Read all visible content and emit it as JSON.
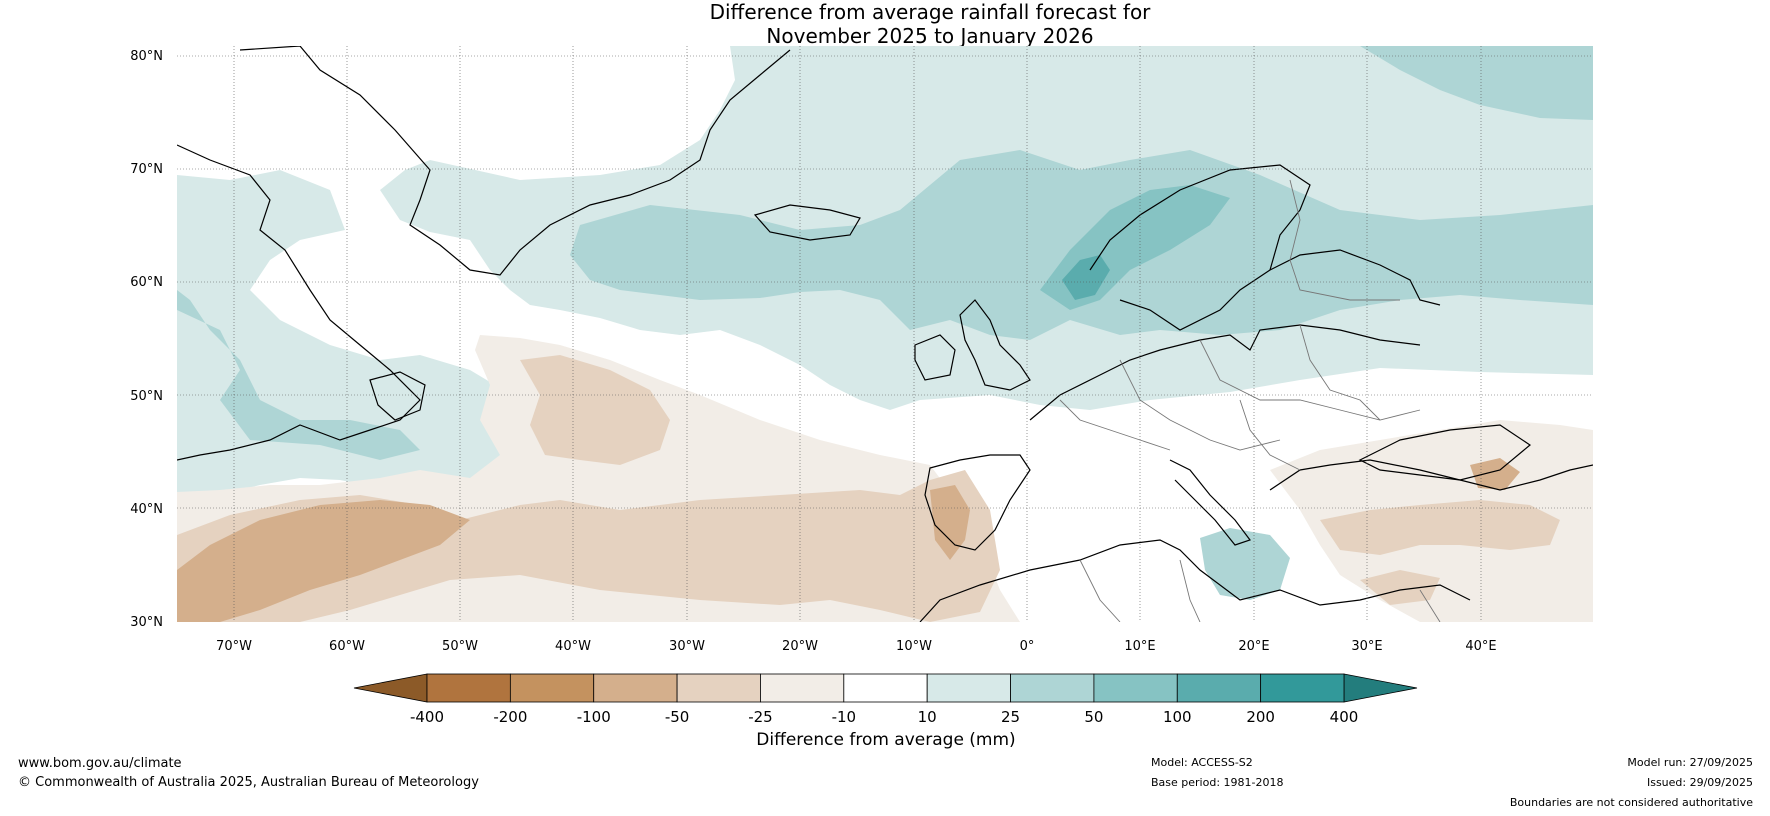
{
  "title": {
    "line1": "Difference from average rainfall forecast for",
    "line2": "November 2025 to January 2026"
  },
  "map": {
    "lat_labels": [
      "80°N",
      "70°N",
      "60°N",
      "50°N",
      "40°N",
      "30°N"
    ],
    "lon_labels": [
      "70°W",
      "60°W",
      "50°W",
      "40°W",
      "30°W",
      "20°W",
      "10°W",
      "0°",
      "10°E",
      "20°E",
      "30°E",
      "40°E"
    ],
    "extent": {
      "lon_min": -75,
      "lon_max": 50,
      "lat_min": 30,
      "lat_max": 81
    }
  },
  "colorbar": {
    "ticks": [
      "-400",
      "-200",
      "-100",
      "-50",
      "-25",
      "-10",
      "10",
      "25",
      "50",
      "100",
      "200",
      "400"
    ],
    "label": "Difference from average (mm)",
    "colors": {
      "below_min": "#8c5a28",
      "bins": [
        "#b0743e",
        "#c4925f",
        "#d4af8c",
        "#e5d2c0",
        "#f2ede7",
        "#ffffff",
        "#d7e9e8",
        "#aed5d5",
        "#86c3c3",
        "#5aacad",
        "#32999a"
      ],
      "above_max": "#237d7d"
    }
  },
  "footer": {
    "website": "www.bom.gov.au/climate",
    "copyright": "© Commonwealth of Australia 2025, Australian Bureau of Meteorology",
    "model": "Model: ACCESS-S2",
    "base_period": "Base period: 1981-2018",
    "model_run": "Model run: 27/09/2025",
    "issued": "Issued: 29/09/2025",
    "disclaimer": "Boundaries are not considered authoritative"
  }
}
